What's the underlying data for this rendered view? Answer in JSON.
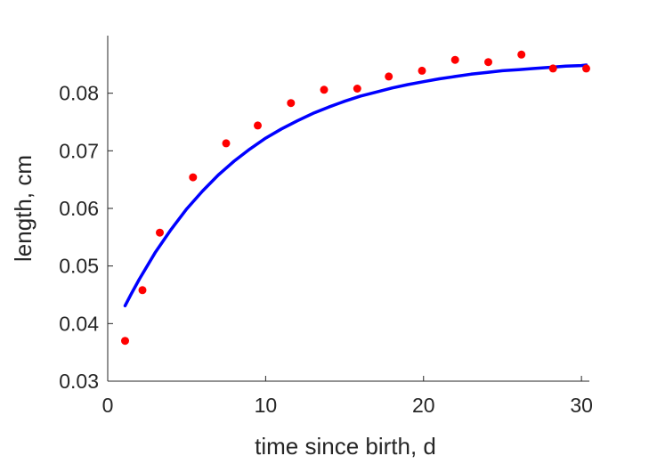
{
  "chart_data": {
    "type": "scatter",
    "xlabel": "time since birth, d",
    "ylabel": "length, cm",
    "xlim": [
      0,
      30.5
    ],
    "ylim": [
      0.03,
      0.09
    ],
    "xticks": [
      0,
      10,
      20,
      30
    ],
    "xtick_labels": [
      "0",
      "10",
      "20",
      "30"
    ],
    "yticks": [
      0.03,
      0.04,
      0.05,
      0.06,
      0.07,
      0.08
    ],
    "ytick_labels": [
      "0.03",
      "0.04",
      "0.05",
      "0.06",
      "0.07",
      "0.08"
    ],
    "grid": false,
    "legend": "none",
    "series": [
      {
        "kind": "scatter",
        "color": "#ff0000",
        "x": [
          1.1,
          2.2,
          3.3,
          5.4,
          7.5,
          9.5,
          11.6,
          13.7,
          15.8,
          17.8,
          19.9,
          22.0,
          24.1,
          26.2,
          28.2,
          30.3
        ],
        "y": [
          0.037,
          0.0458,
          0.0558,
          0.0654,
          0.0713,
          0.0744,
          0.0783,
          0.0806,
          0.0808,
          0.0829,
          0.0839,
          0.0858,
          0.0854,
          0.0867,
          0.0843,
          0.0843
        ]
      },
      {
        "kind": "line",
        "color": "#0000ff",
        "x": [
          1.1,
          1.5,
          2,
          3,
          4,
          5,
          6,
          7,
          8,
          9,
          10,
          11,
          12,
          13,
          14,
          15,
          16,
          17,
          18,
          19,
          20,
          21,
          22,
          23,
          24,
          25,
          26,
          27,
          28,
          29,
          30,
          30.3
        ],
        "y": [
          0.0431,
          0.0452,
          0.0477,
          0.0523,
          0.0563,
          0.0599,
          0.063,
          0.0658,
          0.0682,
          0.0703,
          0.0722,
          0.0738,
          0.0752,
          0.0765,
          0.0776,
          0.0786,
          0.0795,
          0.0802,
          0.0809,
          0.0815,
          0.082,
          0.0825,
          0.0829,
          0.0833,
          0.0836,
          0.0839,
          0.0841,
          0.0843,
          0.0845,
          0.0847,
          0.0848,
          0.0849
        ]
      }
    ]
  }
}
